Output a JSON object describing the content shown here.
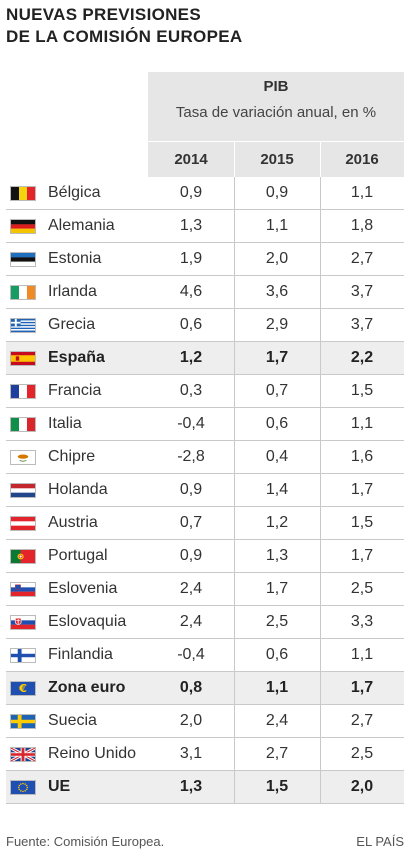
{
  "title": {
    "line1": "NUEVAS PREVISIONES",
    "line2": "DE LA COMISIÓN EUROPEA"
  },
  "header": {
    "metric": "PIB",
    "subtitle": "Tasa de variación anual, en %"
  },
  "chart_data": {
    "type": "table",
    "title": "NUEVAS PREVISIONES DE LA COMISIÓN EUROPEA",
    "metric": "PIB",
    "unit_label": "Tasa de variación anual, en %",
    "columns": [
      "2014",
      "2015",
      "2016"
    ],
    "rows": [
      {
        "country": "Bélgica",
        "flag": "be-flag-icon",
        "values": [
          "0,9",
          "0,9",
          "1,1"
        ],
        "highlight": false
      },
      {
        "country": "Alemania",
        "flag": "de-flag-icon",
        "values": [
          "1,3",
          "1,1",
          "1,8"
        ],
        "highlight": false
      },
      {
        "country": "Estonia",
        "flag": "ee-flag-icon",
        "values": [
          "1,9",
          "2,0",
          "2,7"
        ],
        "highlight": false
      },
      {
        "country": "Irlanda",
        "flag": "ie-flag-icon",
        "values": [
          "4,6",
          "3,6",
          "3,7"
        ],
        "highlight": false
      },
      {
        "country": "Grecia",
        "flag": "gr-flag-icon",
        "values": [
          "0,6",
          "2,9",
          "3,7"
        ],
        "highlight": false
      },
      {
        "country": "España",
        "flag": "es-flag-icon",
        "values": [
          "1,2",
          "1,7",
          "2,2"
        ],
        "highlight": true
      },
      {
        "country": "Francia",
        "flag": "fr-flag-icon",
        "values": [
          "0,3",
          "0,7",
          "1,5"
        ],
        "highlight": false
      },
      {
        "country": "Italia",
        "flag": "it-flag-icon",
        "values": [
          "-0,4",
          "0,6",
          "1,1"
        ],
        "highlight": false
      },
      {
        "country": "Chipre",
        "flag": "cy-flag-icon",
        "values": [
          "-2,8",
          "0,4",
          "1,6"
        ],
        "highlight": false
      },
      {
        "country": "Holanda",
        "flag": "nl-flag-icon",
        "values": [
          "0,9",
          "1,4",
          "1,7"
        ],
        "highlight": false
      },
      {
        "country": "Austria",
        "flag": "at-flag-icon",
        "values": [
          "0,7",
          "1,2",
          "1,5"
        ],
        "highlight": false
      },
      {
        "country": "Portugal",
        "flag": "pt-flag-icon",
        "values": [
          "0,9",
          "1,3",
          "1,7"
        ],
        "highlight": false
      },
      {
        "country": "Eslovenia",
        "flag": "si-flag-icon",
        "values": [
          "2,4",
          "1,7",
          "2,5"
        ],
        "highlight": false
      },
      {
        "country": "Eslovaquia",
        "flag": "sk-flag-icon",
        "values": [
          "2,4",
          "2,5",
          "3,3"
        ],
        "highlight": false
      },
      {
        "country": "Finlandia",
        "flag": "fi-flag-icon",
        "values": [
          "-0,4",
          "0,6",
          "1,1"
        ],
        "highlight": false
      },
      {
        "country": "Zona euro",
        "flag": "euro-flag-icon",
        "values": [
          "0,8",
          "1,1",
          "1,7"
        ],
        "highlight": true
      },
      {
        "country": "Suecia",
        "flag": "se-flag-icon",
        "values": [
          "2,0",
          "2,4",
          "2,7"
        ],
        "highlight": false
      },
      {
        "country": "Reino Unido",
        "flag": "gb-flag-icon",
        "values": [
          "3,1",
          "2,7",
          "2,5"
        ],
        "highlight": false
      },
      {
        "country": "UE",
        "flag": "eu-flag-icon",
        "values": [
          "1,3",
          "1,5",
          "2,0"
        ],
        "highlight": true
      }
    ]
  },
  "footer": {
    "source": "Fuente: Comisión Europea.",
    "brand": "EL PAÍS"
  }
}
